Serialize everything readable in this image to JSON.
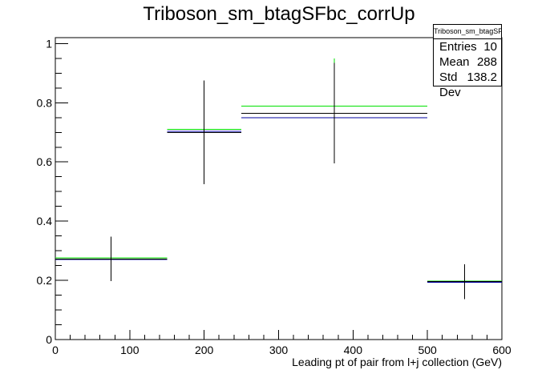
{
  "chart_data": {
    "type": "histogram",
    "title": "Triboson_sm_btagSFbc_corrUp",
    "xlabel": "Leading pt of pair from l+j collection (GeV)",
    "ylabel": "",
    "xlim": [
      0,
      600
    ],
    "ylim": [
      0,
      1.02
    ],
    "x_ticks": [
      "0",
      "100",
      "200",
      "300",
      "400",
      "500",
      "600"
    ],
    "y_ticks": [
      "0",
      "0.2",
      "0.4",
      "0.6",
      "0.8",
      "1"
    ],
    "bins": [
      {
        "x_low": 0,
        "x_high": 150,
        "x_center": 75,
        "value": 0.272,
        "err_low": 0.197,
        "err_high": 0.348
      },
      {
        "x_low": 150,
        "x_high": 250,
        "x_center": 200,
        "value": 0.7,
        "err_low": 0.525,
        "err_high": 0.875
      },
      {
        "x_low": 250,
        "x_high": 500,
        "x_center": 375,
        "value": 0.765,
        "err_low": 0.595,
        "err_high": 0.935
      },
      {
        "x_low": 500,
        "x_high": 600,
        "x_center": 550,
        "value": 0.196,
        "err_low": 0.137,
        "err_high": 0.255
      }
    ],
    "variations": [
      {
        "color": "#00e000",
        "values": [
          0.276,
          0.71,
          0.788,
          0.198
        ],
        "err_high": [
          null,
          null,
          0.95,
          null
        ]
      },
      {
        "color": "#0000a0",
        "values": [
          0.27,
          0.704,
          0.75,
          0.194
        ]
      }
    ],
    "grid": false
  },
  "stats_box": {
    "header": "Triboson_sm_btagSFbc_corrUp",
    "rows": [
      {
        "label": "Entries",
        "value": "10"
      },
      {
        "label": "Mean",
        "value": "288"
      },
      {
        "label": "Std Dev",
        "value": "138.2"
      }
    ]
  }
}
